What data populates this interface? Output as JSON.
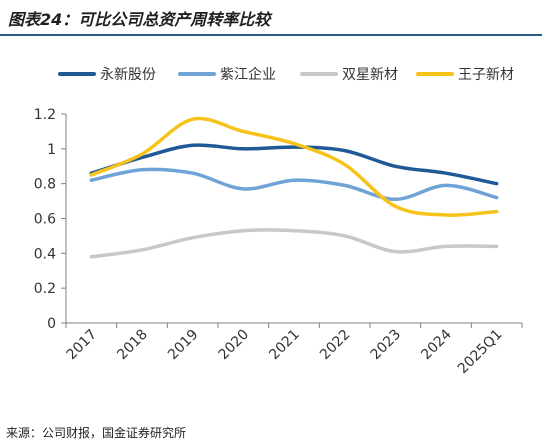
{
  "figure": {
    "title": "图表24：可比公司总资产周转率比较",
    "source": "来源：公司财报，国金证券研究所"
  },
  "chart_data": {
    "type": "line",
    "title": "",
    "xlabel": "",
    "ylabel": "",
    "categories": [
      "2017",
      "2018",
      "2019",
      "2020",
      "2021",
      "2022",
      "2023",
      "2024",
      "2025Q1"
    ],
    "ylim": [
      0,
      1.2
    ],
    "yticks": [
      "0",
      "0.2",
      "0.4",
      "0.6",
      "0.8",
      "1",
      "1.2"
    ],
    "grid": false,
    "legend_position": "top",
    "series": [
      {
        "name": "永新股份",
        "color": "#1f5a96",
        "values": [
          0.86,
          0.95,
          1.02,
          1.0,
          1.01,
          0.99,
          0.9,
          0.86,
          0.8
        ]
      },
      {
        "name": "紫江企业",
        "color": "#6fa3d8",
        "values": [
          0.82,
          0.88,
          0.86,
          0.77,
          0.82,
          0.79,
          0.71,
          0.79,
          0.72
        ]
      },
      {
        "name": "双星新材",
        "color": "#c8c8c8",
        "values": [
          0.38,
          0.42,
          0.49,
          0.53,
          0.53,
          0.5,
          0.41,
          0.44,
          0.44
        ]
      },
      {
        "name": "王子新材",
        "color": "#f7c31b",
        "values": [
          0.85,
          0.97,
          1.17,
          1.1,
          1.03,
          0.91,
          0.67,
          0.62,
          0.64
        ]
      }
    ]
  }
}
